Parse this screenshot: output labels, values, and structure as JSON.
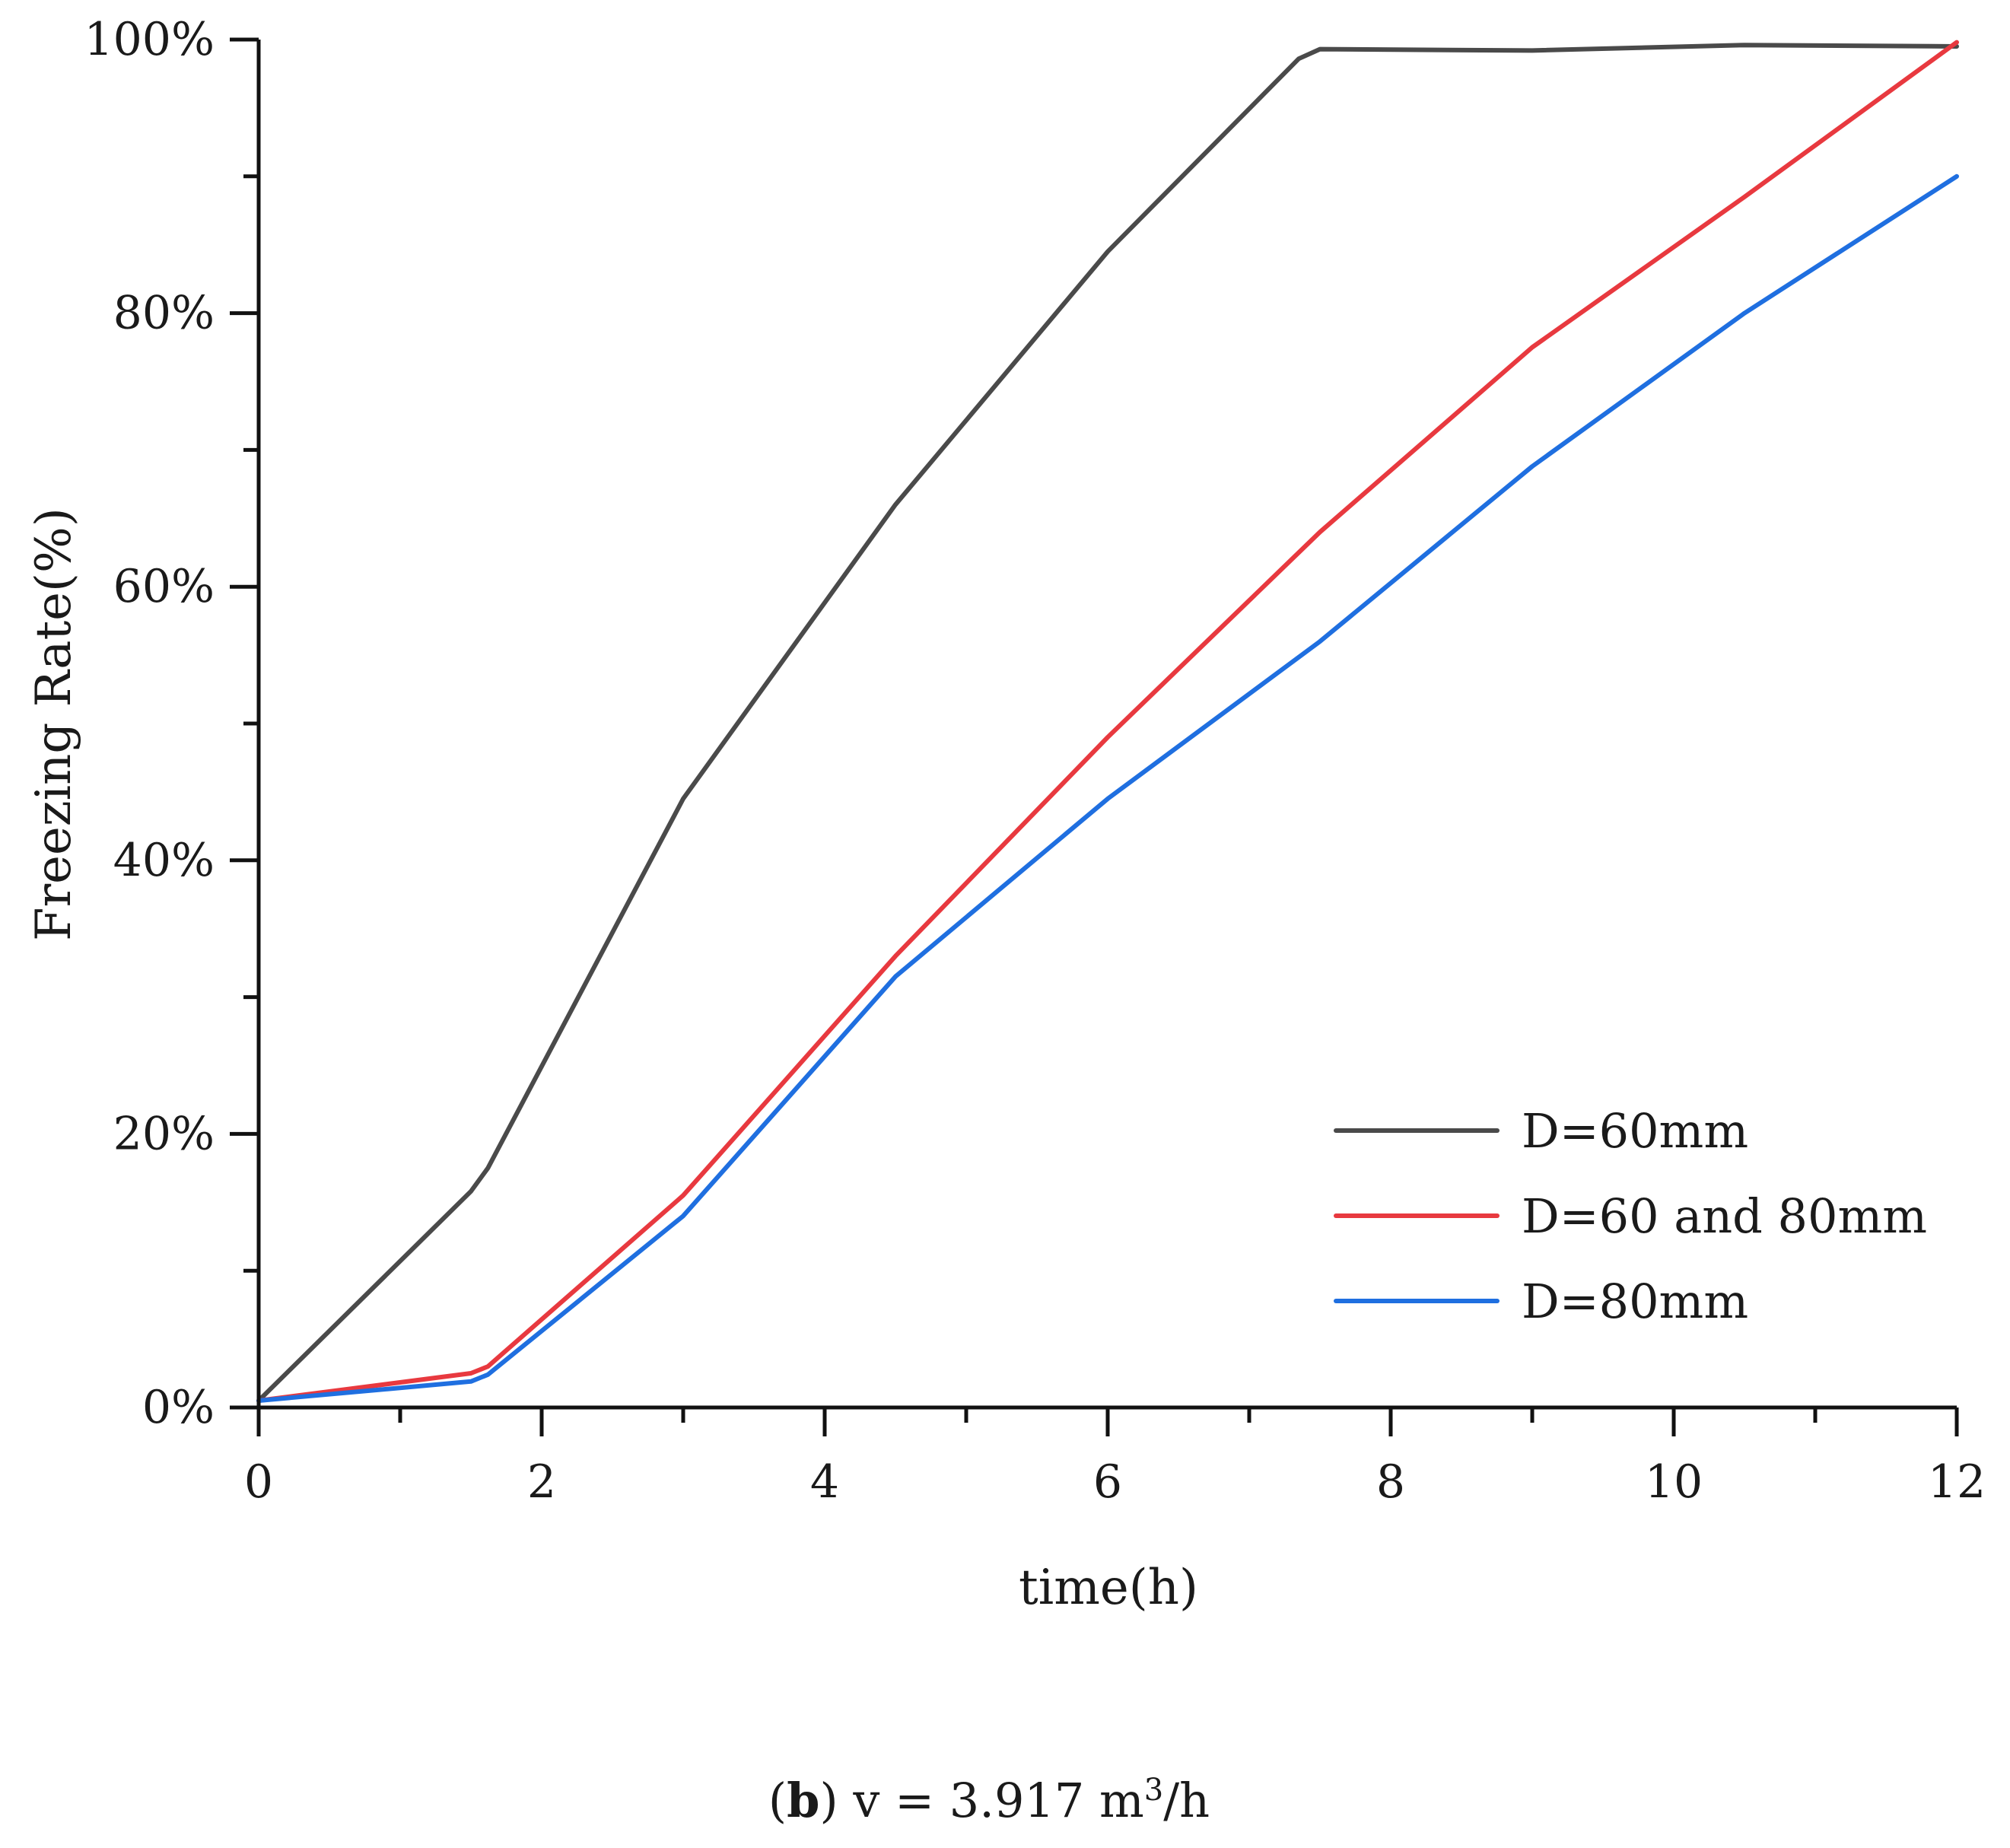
{
  "chart_data": {
    "type": "line",
    "title": "",
    "xlabel": "time(h)",
    "ylabel": "Freezing Rate(%)",
    "xlim": [
      0,
      12
    ],
    "ylim": [
      0,
      100
    ],
    "x_ticks": [
      "0",
      "2",
      "4",
      "6",
      "8",
      "10",
      "12"
    ],
    "y_ticks": [
      "0%",
      "20%",
      "40%",
      "60%",
      "80%",
      "100%"
    ],
    "legend_position": "bottom-right",
    "series": [
      {
        "name": "D=60mm",
        "color": "#4a4a4a",
        "x": [
          0,
          1.5,
          1.62,
          3,
          4.5,
          6,
          7.35,
          7.5,
          9,
          10.5,
          12
        ],
        "y": [
          0.5,
          15.8,
          17.5,
          44.5,
          66,
          84.5,
          98.6,
          99.3,
          99.2,
          99.6,
          99.5
        ]
      },
      {
        "name": "D=60 and 80mm",
        "color": "#e8393f",
        "x": [
          0,
          1.5,
          1.62,
          3,
          4.5,
          6,
          7.5,
          9,
          10.5,
          12
        ],
        "y": [
          0.5,
          2.5,
          3.0,
          15.5,
          33,
          49,
          64,
          77.5,
          88.5,
          99.8
        ]
      },
      {
        "name": "D=80mm",
        "color": "#1f6fe0",
        "x": [
          0,
          1.5,
          1.62,
          3,
          4.5,
          6,
          7.5,
          9,
          10.5,
          12
        ],
        "y": [
          0.5,
          1.9,
          2.4,
          14,
          31.5,
          44.5,
          56,
          68.8,
          80,
          90
        ]
      }
    ]
  },
  "caption": {
    "bold": "b",
    "text": " v = 3.917 m",
    "sup": "3",
    "unit": "/h"
  }
}
